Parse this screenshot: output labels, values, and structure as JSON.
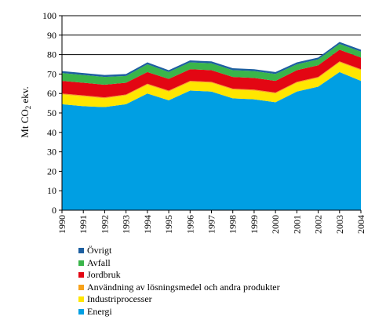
{
  "chart_data": {
    "type": "area",
    "stacked": true,
    "title": "",
    "xlabel": "",
    "ylabel": "Mt CO2 ekv.",
    "ylim": [
      0,
      100
    ],
    "yticks": [
      "0",
      "10",
      "20",
      "30",
      "40",
      "50",
      "60",
      "70",
      "80",
      "90",
      "100"
    ],
    "grid": "horizontal at 80, 90, 100",
    "x": [
      "1990",
      "1991",
      "1992",
      "1993",
      "1994",
      "1995",
      "1996",
      "1997",
      "1998",
      "1999",
      "2000",
      "2001",
      "2002",
      "2003",
      "2004"
    ],
    "series": [
      {
        "name": "Energi",
        "color": "#009fe3",
        "values": [
          54.5,
          53.5,
          53.0,
          54.5,
          60.0,
          56.5,
          61.5,
          61.0,
          57.5,
          57.0,
          55.5,
          61.0,
          63.5,
          71.0,
          66.5
        ]
      },
      {
        "name": "Industriprocesser",
        "color": "#ffe600",
        "values": [
          5.0,
          5.0,
          4.5,
          4.5,
          4.5,
          4.5,
          4.5,
          4.5,
          4.5,
          4.5,
          4.5,
          4.5,
          4.5,
          5.0,
          5.5
        ]
      },
      {
        "name": "Användning av lösningsmedel och andra produkter",
        "color": "#f7a21b",
        "values": [
          0.5,
          0.5,
          0.5,
          0.5,
          0.5,
          0.5,
          0.5,
          0.5,
          0.5,
          0.5,
          0.5,
          0.5,
          0.5,
          0.5,
          0.5
        ]
      },
      {
        "name": "Jordbruk",
        "color": "#e30613",
        "values": [
          6.5,
          6.5,
          6.5,
          6.0,
          6.0,
          6.0,
          6.0,
          6.0,
          6.0,
          6.0,
          6.0,
          6.0,
          6.0,
          6.0,
          6.0
        ]
      },
      {
        "name": "Avfall",
        "color": "#3ab54a",
        "values": [
          4.0,
          4.0,
          4.0,
          3.5,
          4.0,
          3.5,
          3.5,
          3.5,
          3.5,
          3.5,
          3.5,
          3.0,
          3.0,
          3.0,
          3.0
        ]
      },
      {
        "name": "Övrigt",
        "color": "#1d5fa0",
        "values": [
          1.0,
          1.0,
          1.0,
          1.0,
          1.0,
          1.0,
          1.0,
          1.0,
          1.0,
          1.0,
          1.0,
          1.0,
          1.0,
          1.0,
          1.0
        ]
      }
    ],
    "legend": {
      "placement": "bottom-left",
      "order": [
        "Övrigt",
        "Avfall",
        "Jordbruk",
        "Användning av lösningsmedel och andra produkter",
        "Industriprocesser",
        "Energi"
      ]
    }
  }
}
